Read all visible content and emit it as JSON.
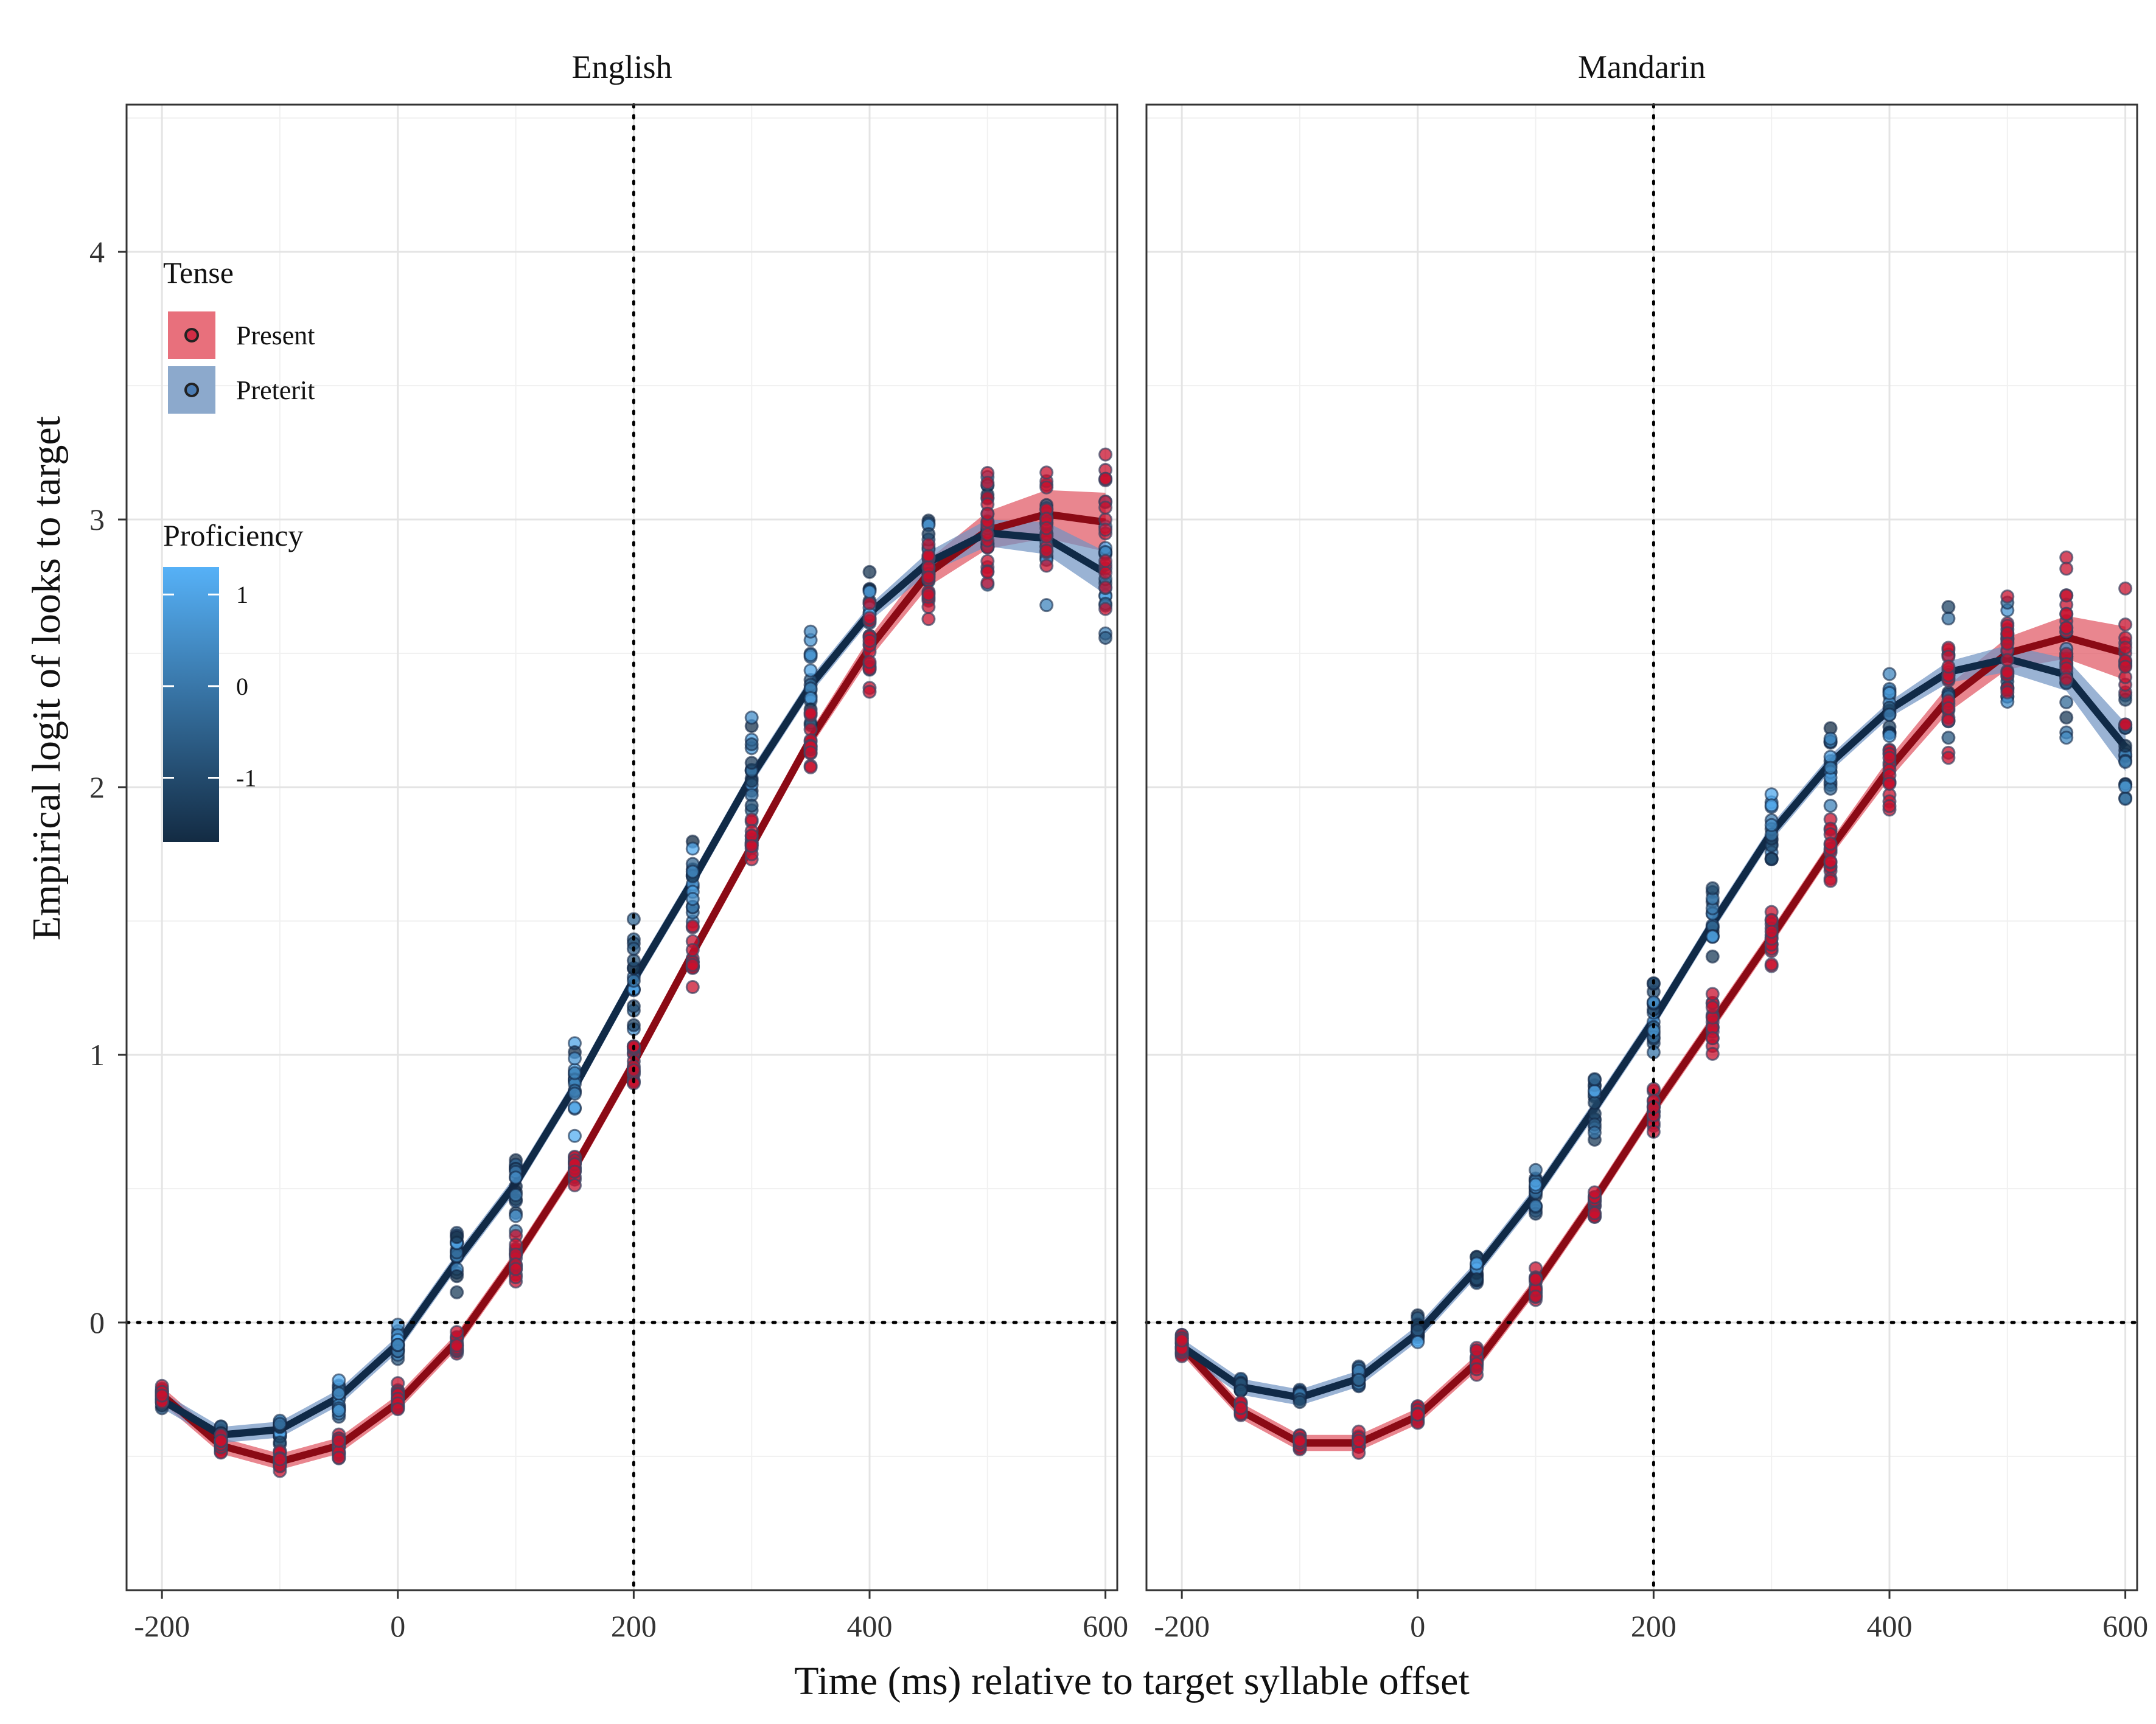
{
  "chart_data": {
    "type": "line",
    "xlabel": "Time (ms) relative to target syllable offset",
    "ylabel": "Empirical logit of looks to target",
    "xlim": [
      -230,
      610
    ],
    "ylim": [
      -1.0,
      4.55
    ],
    "x_ticks": [
      -200,
      0,
      200,
      400,
      600
    ],
    "x_tick_labels": [
      "-200",
      "0",
      "200",
      "400",
      "600"
    ],
    "y_ticks": [
      0,
      1,
      2,
      3,
      4
    ],
    "y_tick_labels": [
      "0",
      "1",
      "2",
      "3",
      "4"
    ],
    "grid": true,
    "reference_lines": {
      "x": 200,
      "y": 0,
      "style": "dotted"
    },
    "x": [
      -200,
      -150,
      -100,
      -50,
      0,
      50,
      100,
      150,
      200,
      250,
      300,
      350,
      400,
      450,
      500,
      550,
      600
    ],
    "legend": {
      "placement": "top-left inside English panel",
      "tense_title": "Tense",
      "tense_items": [
        {
          "label": "Present",
          "fill": "#e8707c",
          "point": "#c8102e"
        },
        {
          "label": "Preterit",
          "fill": "#8ca9cc",
          "point": "#2f6aa8"
        }
      ],
      "proficiency_title": "Proficiency",
      "proficiency_ticks": [
        {
          "label": "1",
          "value": 1
        },
        {
          "label": "0",
          "value": 0
        },
        {
          "label": "-1",
          "value": -1
        }
      ],
      "proficiency_range": [
        -1.7,
        1.3
      ],
      "gradient_low": "#132b43",
      "gradient_high": "#56b1f7"
    },
    "panels": [
      {
        "name": "English",
        "series": [
          {
            "name": "Present",
            "values": [
              -0.27,
              -0.46,
              -0.52,
              -0.46,
              -0.3,
              -0.07,
              0.24,
              0.58,
              0.97,
              1.38,
              1.78,
              2.18,
              2.52,
              2.8,
              2.96,
              3.02,
              2.99
            ],
            "band": [
              0.03,
              0.03,
              0.03,
              0.03,
              0.03,
              0.03,
              0.03,
              0.03,
              0.03,
              0.03,
              0.03,
              0.03,
              0.04,
              0.05,
              0.07,
              0.09,
              0.11
            ],
            "spread": [
              0.06,
              0.06,
              0.06,
              0.07,
              0.08,
              0.09,
              0.11,
              0.12,
              0.14,
              0.15,
              0.16,
              0.2,
              0.24,
              0.28,
              0.32,
              0.38,
              0.4
            ],
            "color": "#8b0a15",
            "band_color": "#e05260"
          },
          {
            "name": "Preterit",
            "values": [
              -0.29,
              -0.42,
              -0.4,
              -0.28,
              -0.08,
              0.23,
              0.52,
              0.88,
              1.28,
              1.65,
              2.04,
              2.38,
              2.65,
              2.84,
              2.95,
              2.93,
              2.8
            ],
            "band": [
              0.03,
              0.03,
              0.03,
              0.03,
              0.03,
              0.03,
              0.03,
              0.03,
              0.03,
              0.03,
              0.03,
              0.03,
              0.03,
              0.04,
              0.05,
              0.06,
              0.08
            ],
            "spread": [
              0.07,
              0.07,
              0.08,
              0.12,
              0.14,
              0.16,
              0.2,
              0.24,
              0.26,
              0.26,
              0.28,
              0.3,
              0.3,
              0.3,
              0.34,
              0.36,
              0.4
            ],
            "color": "#102a47",
            "band_color": "#6f93c2"
          }
        ]
      },
      {
        "name": "Mandarin",
        "series": [
          {
            "name": "Present",
            "values": [
              -0.09,
              -0.33,
              -0.45,
              -0.45,
              -0.35,
              -0.15,
              0.14,
              0.46,
              0.8,
              1.12,
              1.44,
              1.77,
              2.07,
              2.33,
              2.5,
              2.56,
              2.5
            ],
            "band": [
              0.03,
              0.03,
              0.03,
              0.03,
              0.03,
              0.03,
              0.03,
              0.03,
              0.03,
              0.03,
              0.03,
              0.03,
              0.04,
              0.05,
              0.06,
              0.08,
              0.1
            ],
            "spread": [
              0.06,
              0.05,
              0.05,
              0.06,
              0.07,
              0.08,
              0.1,
              0.12,
              0.14,
              0.16,
              0.18,
              0.2,
              0.22,
              0.3,
              0.32,
              0.36,
              0.4
            ],
            "color": "#8b0a15",
            "band_color": "#e05260"
          },
          {
            "name": "Preterit",
            "values": [
              -0.09,
              -0.24,
              -0.28,
              -0.21,
              -0.04,
              0.2,
              0.48,
              0.8,
              1.13,
              1.49,
              1.83,
              2.09,
              2.29,
              2.43,
              2.48,
              2.42,
              2.15
            ],
            "band": [
              0.03,
              0.03,
              0.03,
              0.03,
              0.03,
              0.03,
              0.03,
              0.03,
              0.03,
              0.03,
              0.03,
              0.03,
              0.03,
              0.04,
              0.05,
              0.06,
              0.09
            ],
            "spread": [
              0.08,
              0.06,
              0.04,
              0.06,
              0.08,
              0.1,
              0.14,
              0.18,
              0.2,
              0.22,
              0.24,
              0.26,
              0.28,
              0.3,
              0.32,
              0.34,
              0.38
            ],
            "color": "#102a47",
            "band_color": "#6f93c2"
          }
        ]
      }
    ]
  }
}
